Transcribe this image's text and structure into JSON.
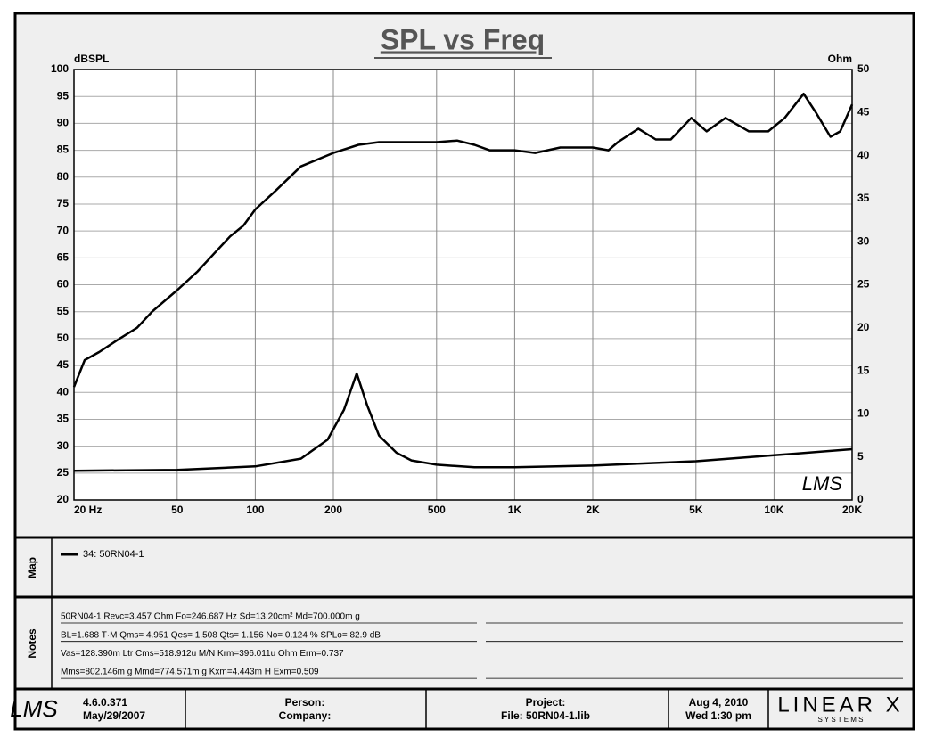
{
  "chart_data": {
    "type": "line",
    "title": "SPL vs Freq",
    "y_label": "dBSPL",
    "y2_label": "Ohm",
    "xlog": true,
    "grid": true,
    "xlim": [
      20,
      20000
    ],
    "xticks": [
      {
        "value": 20,
        "label": "20  Hz"
      },
      50,
      100,
      200,
      500,
      {
        "value": 1000,
        "label": "1K"
      },
      {
        "value": 2000,
        "label": "2K"
      },
      {
        "value": 5000,
        "label": "5K"
      },
      {
        "value": 10000,
        "label": "10K"
      },
      {
        "value": 20000,
        "label": "20K"
      }
    ],
    "ylim": [
      20,
      100
    ],
    "yticks": [
      20,
      25,
      30,
      35,
      40,
      45,
      50,
      55,
      60,
      65,
      70,
      75,
      80,
      85,
      90,
      95,
      100
    ],
    "y2lim": [
      0,
      50
    ],
    "y2ticks": [
      0,
      5,
      10,
      15,
      20,
      25,
      30,
      35,
      40,
      45,
      50
    ],
    "series": [
      {
        "name": "34: 50RN04-1",
        "color": "#000000",
        "x": [
          20,
          22,
          25,
          30,
          35,
          40,
          50,
          60,
          70,
          80,
          90,
          100,
          120,
          150,
          200,
          250,
          300,
          400,
          500,
          600,
          700,
          800,
          1000,
          1200,
          1500,
          2000,
          2300,
          2500,
          3000,
          3500,
          4000,
          4800,
          5500,
          6500,
          8000,
          9500,
          11000,
          13000,
          14500,
          16500,
          18000,
          20000
        ],
        "values": [
          41,
          46,
          47.5,
          50,
          52,
          55,
          59,
          62.5,
          66,
          69,
          71,
          74,
          77.5,
          82,
          84.5,
          86,
          86.5,
          86.5,
          86.5,
          86.8,
          86,
          85,
          85,
          84.5,
          85.5,
          85.5,
          85,
          86.5,
          89,
          87,
          87,
          91,
          88.5,
          91,
          88.5,
          88.5,
          91,
          95.5,
          92,
          87.5,
          88.5,
          93.5
        ]
      },
      {
        "color": "#000000",
        "axis": "y2",
        "x": [
          20,
          50,
          100,
          150,
          190,
          220,
          246,
          270,
          300,
          350,
          400,
          500,
          700,
          1000,
          2000,
          5000,
          10000,
          20000
        ],
        "values": [
          3.4,
          3.5,
          3.9,
          4.8,
          7,
          10.5,
          14.7,
          11,
          7.5,
          5.5,
          4.6,
          4.1,
          3.8,
          3.8,
          4.0,
          4.5,
          5.2,
          5.9
        ]
      }
    ]
  },
  "watermark": "LMS",
  "map": {
    "label": "Map"
  },
  "notes": {
    "label": "Notes",
    "lines": [
      "50RN04-1 Revc=3.457 Ohm  Fo=246.687 Hz  Sd=13.20cm² Md=700.000m g",
      "BL=1.688 T·M  Qms= 4.951  Qes= 1.508  Qts= 1.156  No= 0.124 %  SPLo= 82.9 dB",
      "Vas=128.390m Ltr  Cms=518.912u M/N  Krm=396.011u Ohm  Erm=0.737",
      "Mms=802.146m g  Mmd=774.571m g  Kxm=4.443m H  Exm=0.509"
    ]
  },
  "footer": {
    "logo": "LMS",
    "version": "4.6.0.371",
    "version_date": "May/29/2007",
    "person": "Person:",
    "company": "Company:",
    "project": "Project:",
    "file": "File: 50RN04-1.lib",
    "date": "Aug  4, 2010",
    "time": "Wed  1:30 pm",
    "brand": "LINEAR X",
    "brand_sub": "S Y S T E M S"
  }
}
